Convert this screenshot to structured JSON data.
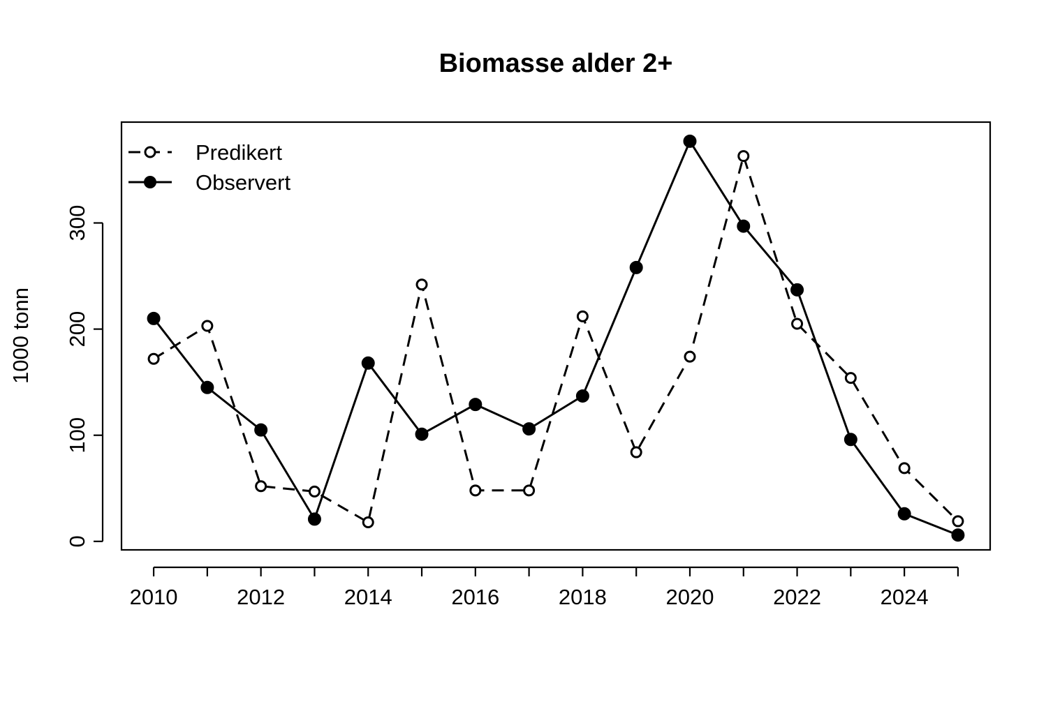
{
  "chart_data": {
    "type": "line",
    "title": "Biomasse alder 2+",
    "xlabel": "",
    "ylabel": "1000 tonn",
    "x": [
      2010,
      2011,
      2012,
      2013,
      2014,
      2015,
      2016,
      2017,
      2018,
      2019,
      2020,
      2021,
      2022,
      2023,
      2024,
      2025
    ],
    "xlim": [
      2009.4,
      2025.6
    ],
    "ylim": [
      -8,
      395
    ],
    "xticks": [
      2010,
      2011,
      2012,
      2013,
      2014,
      2015,
      2016,
      2017,
      2018,
      2019,
      2020,
      2021,
      2022,
      2023,
      2024,
      2025
    ],
    "xtick_labels": [
      "2010",
      "",
      "2012",
      "",
      "2014",
      "",
      "2016",
      "",
      "2018",
      "",
      "2020",
      "",
      "2022",
      "",
      "2024",
      ""
    ],
    "yticks": [
      0,
      100,
      200,
      300
    ],
    "ytick_labels": [
      "0",
      "100",
      "200",
      "300"
    ],
    "grid": false,
    "legend_position": "top-left",
    "series": [
      {
        "name": "Predikert",
        "style": "dashed",
        "marker": "open-circle",
        "color": "#000000",
        "values": [
          172,
          203,
          52,
          47,
          18,
          242,
          48,
          48,
          212,
          84,
          174,
          363,
          205,
          154,
          69,
          19
        ]
      },
      {
        "name": "Observert",
        "style": "solid",
        "marker": "filled-circle",
        "color": "#000000",
        "values": [
          210,
          145,
          105,
          21,
          168,
          101,
          129,
          106,
          137,
          258,
          377,
          297,
          237,
          96,
          26,
          6
        ]
      }
    ]
  }
}
